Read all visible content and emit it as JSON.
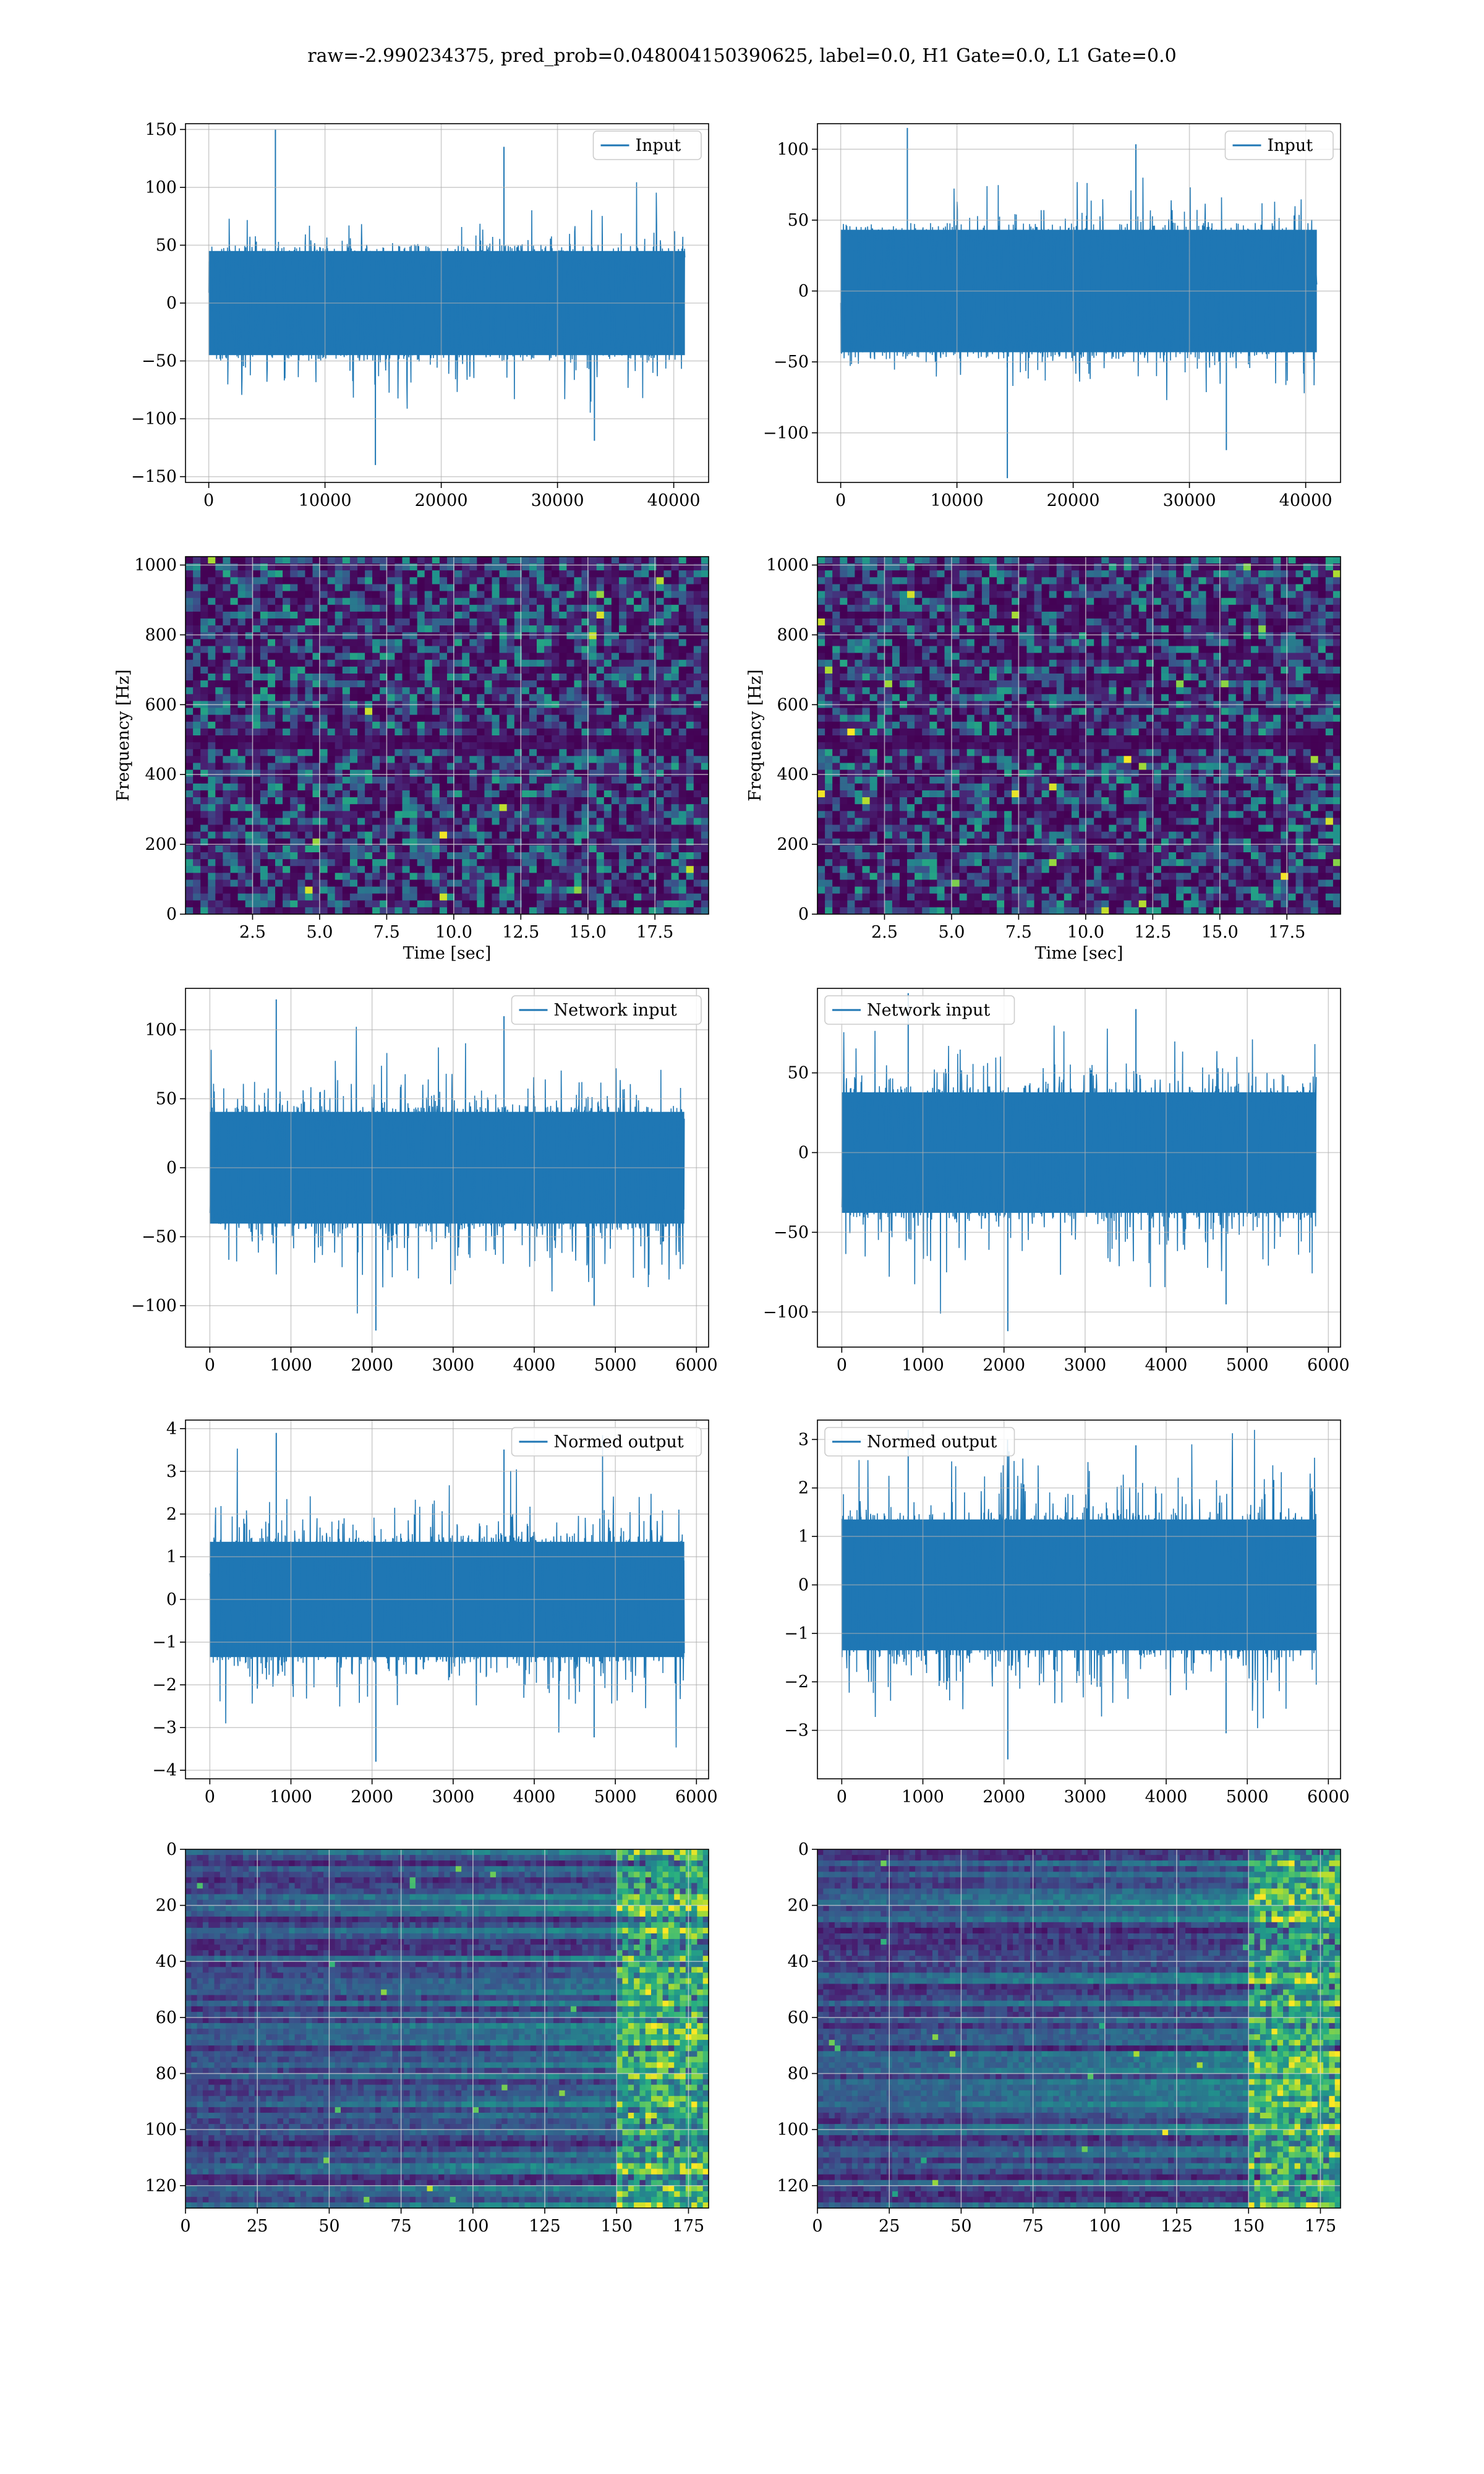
{
  "figure": {
    "suptitle": "raw=-2.990234375, pred_prob=0.048004150390625, label=0.0, H1 Gate=0.0, L1 Gate=0.0"
  },
  "colors": {
    "line": "#1f77b4",
    "grid": "#b0b0b0",
    "viridis_low": "#440154",
    "viridis_mid": "#21918c",
    "viridis_high": "#fde725"
  },
  "chart_data": [
    {
      "id": "h1-input",
      "type": "line",
      "legend": "Input",
      "xlim": [
        -2000,
        43000
      ],
      "ylim": [
        -155,
        155
      ],
      "xticks": [
        0,
        10000,
        20000,
        30000,
        40000
      ],
      "xtick_labels": [
        "0",
        "10000",
        "20000",
        "30000",
        "40000"
      ],
      "yticks": [
        -150,
        -100,
        -50,
        0,
        50,
        100,
        150
      ],
      "ytick_labels": [
        "−150",
        "−100",
        "−50",
        "0",
        "50",
        "100",
        "150"
      ],
      "series": {
        "x_range": [
          0,
          40960
        ],
        "std": 28,
        "core": 50,
        "max": 150,
        "min": -140
      },
      "xlabel": "",
      "ylabel": "",
      "grid": true,
      "legend_loc": "upper right"
    },
    {
      "id": "l1-input",
      "type": "line",
      "legend": "Input",
      "xlim": [
        -2000,
        43000
      ],
      "ylim": [
        -135,
        118
      ],
      "xticks": [
        0,
        10000,
        20000,
        30000,
        40000
      ],
      "xtick_labels": [
        "0",
        "10000",
        "20000",
        "30000",
        "40000"
      ],
      "yticks": [
        -100,
        -50,
        0,
        50,
        100
      ],
      "ytick_labels": [
        "−100",
        "−50",
        "0",
        "50",
        "100"
      ],
      "series": {
        "x_range": [
          0,
          40960
        ],
        "std": 26,
        "core": 48,
        "max": 115,
        "min": -132
      },
      "xlabel": "",
      "ylabel": "",
      "grid": true,
      "legend_loc": "upper right"
    },
    {
      "id": "h1-spectrogram",
      "type": "heatmap",
      "xlim": [
        0,
        19.5
      ],
      "ylim": [
        0,
        1024
      ],
      "xticks": [
        2.5,
        5.0,
        7.5,
        10.0,
        12.5,
        15.0,
        17.5
      ],
      "xtick_labels": [
        "2.5",
        "5.0",
        "7.5",
        "10.0",
        "12.5",
        "15.0",
        "17.5"
      ],
      "yticks": [
        0,
        200,
        400,
        600,
        800,
        1000
      ],
      "ytick_labels": [
        "0",
        "200",
        "400",
        "600",
        "800",
        "1000"
      ],
      "xlabel": "Time [sec]",
      "ylabel": "Frequency [Hz]",
      "grid": true,
      "colormap": "viridis"
    },
    {
      "id": "l1-spectrogram",
      "type": "heatmap",
      "xlim": [
        0,
        19.5
      ],
      "ylim": [
        0,
        1024
      ],
      "xticks": [
        2.5,
        5.0,
        7.5,
        10.0,
        12.5,
        15.0,
        17.5
      ],
      "xtick_labels": [
        "2.5",
        "5.0",
        "7.5",
        "10.0",
        "12.5",
        "15.0",
        "17.5"
      ],
      "yticks": [
        0,
        200,
        400,
        600,
        800,
        1000
      ],
      "ytick_labels": [
        "0",
        "200",
        "400",
        "600",
        "800",
        "1000"
      ],
      "xlabel": "Time [sec]",
      "ylabel": "Frequency [Hz]",
      "grid": true,
      "colormap": "viridis"
    },
    {
      "id": "h1-network-input",
      "type": "line",
      "legend": "Network input",
      "xlim": [
        -300,
        6150
      ],
      "ylim": [
        -130,
        130
      ],
      "xticks": [
        0,
        1000,
        2000,
        3000,
        4000,
        5000,
        6000
      ],
      "xtick_labels": [
        "0",
        "1000",
        "2000",
        "3000",
        "4000",
        "5000",
        "6000"
      ],
      "yticks": [
        -100,
        -50,
        0,
        50,
        100
      ],
      "ytick_labels": [
        "−100",
        "−50",
        "0",
        "50",
        "100"
      ],
      "series": {
        "x_range": [
          0,
          5850
        ],
        "std": 30,
        "core": 45,
        "max": 122,
        "min": -118
      },
      "xlabel": "",
      "ylabel": "",
      "grid": true,
      "legend_loc": "upper right"
    },
    {
      "id": "l1-network-input",
      "type": "line",
      "legend": "Network input",
      "xlim": [
        -300,
        6150
      ],
      "ylim": [
        -122,
        103
      ],
      "xticks": [
        0,
        1000,
        2000,
        3000,
        4000,
        5000,
        6000
      ],
      "xtick_labels": [
        "0",
        "1000",
        "2000",
        "3000",
        "4000",
        "5000",
        "6000"
      ],
      "yticks": [
        -100,
        -50,
        0,
        50
      ],
      "ytick_labels": [
        "−100",
        "−50",
        "0",
        "50"
      ],
      "series": {
        "x_range": [
          0,
          5850
        ],
        "std": 28,
        "core": 42,
        "max": 100,
        "min": -112
      },
      "xlabel": "",
      "ylabel": "",
      "grid": true,
      "legend_loc": "upper left"
    },
    {
      "id": "h1-normed-output",
      "type": "line",
      "legend": "Normed output",
      "xlim": [
        -300,
        6150
      ],
      "ylim": [
        -4.2,
        4.2
      ],
      "xticks": [
        0,
        1000,
        2000,
        3000,
        4000,
        5000,
        6000
      ],
      "xtick_labels": [
        "0",
        "1000",
        "2000",
        "3000",
        "4000",
        "5000",
        "6000"
      ],
      "yticks": [
        -4,
        -3,
        -2,
        -1,
        0,
        1,
        2,
        3,
        4
      ],
      "ytick_labels": [
        "−4",
        "−3",
        "−2",
        "−1",
        "0",
        "1",
        "2",
        "3",
        "4"
      ],
      "series": {
        "x_range": [
          0,
          5850
        ],
        "std": 1.0,
        "core": 1.5,
        "max": 3.9,
        "min": -3.8
      },
      "xlabel": "",
      "ylabel": "",
      "grid": true,
      "legend_loc": "upper right"
    },
    {
      "id": "l1-normed-output",
      "type": "line",
      "legend": "Normed output",
      "xlim": [
        -300,
        6150
      ],
      "ylim": [
        -4.0,
        3.4
      ],
      "xticks": [
        0,
        1000,
        2000,
        3000,
        4000,
        5000,
        6000
      ],
      "xtick_labels": [
        "0",
        "1000",
        "2000",
        "3000",
        "4000",
        "5000",
        "6000"
      ],
      "yticks": [
        -3,
        -2,
        -1,
        0,
        1,
        2,
        3
      ],
      "ytick_labels": [
        "−3",
        "−2",
        "−1",
        "0",
        "1",
        "2",
        "3"
      ],
      "series": {
        "x_range": [
          0,
          5850
        ],
        "std": 1.0,
        "core": 1.5,
        "max": 3.2,
        "min": -3.6
      },
      "xlabel": "",
      "ylabel": "",
      "grid": true,
      "legend_loc": "upper left"
    },
    {
      "id": "h1-feature-map",
      "type": "heatmap",
      "xlim": [
        0,
        182
      ],
      "ylim": [
        128,
        0
      ],
      "xticks": [
        0,
        25,
        50,
        75,
        100,
        125,
        150,
        175
      ],
      "xtick_labels": [
        "0",
        "25",
        "50",
        "75",
        "100",
        "125",
        "150",
        "175"
      ],
      "yticks": [
        0,
        20,
        40,
        60,
        80,
        100,
        120
      ],
      "ytick_labels": [
        "0",
        "20",
        "40",
        "60",
        "80",
        "100",
        "120"
      ],
      "xlabel": "",
      "ylabel": "",
      "grid": true,
      "colormap": "viridis"
    },
    {
      "id": "l1-feature-map",
      "type": "heatmap",
      "xlim": [
        0,
        182
      ],
      "ylim": [
        128,
        0
      ],
      "xticks": [
        0,
        25,
        50,
        75,
        100,
        125,
        150,
        175
      ],
      "xtick_labels": [
        "0",
        "25",
        "50",
        "75",
        "100",
        "125",
        "150",
        "175"
      ],
      "yticks": [
        0,
        20,
        40,
        60,
        80,
        100,
        120
      ],
      "ytick_labels": [
        "0",
        "20",
        "40",
        "60",
        "80",
        "100",
        "120"
      ],
      "xlabel": "",
      "ylabel": "",
      "grid": true,
      "colormap": "viridis"
    }
  ]
}
